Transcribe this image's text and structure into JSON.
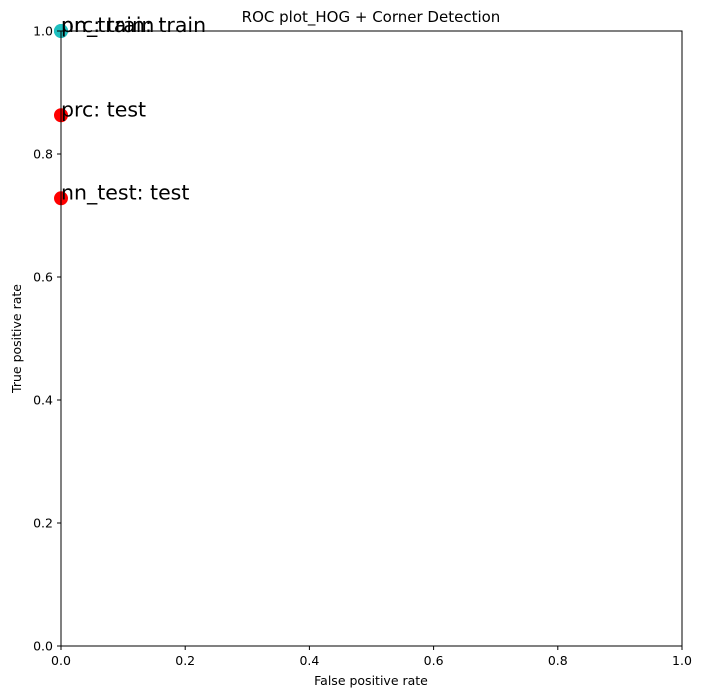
{
  "chart_data": {
    "type": "scatter",
    "title": "ROC plot_HOG + Corner Detection",
    "xlabel": "False positive rate",
    "ylabel": "True positive rate",
    "xlim": [
      0,
      1
    ],
    "ylim": [
      0,
      1
    ],
    "xticks": [
      "0.0",
      "0.2",
      "0.4",
      "0.6",
      "0.8",
      "1.0"
    ],
    "yticks": [
      "0.0",
      "0.2",
      "0.4",
      "0.6",
      "0.8",
      "1.0"
    ],
    "grid": false,
    "points": [
      {
        "label": "prc: train",
        "x": 0.0,
        "y": 1.0,
        "color": "#1fbfbf"
      },
      {
        "label": "nn_train: train",
        "x": 0.0,
        "y": 1.0,
        "color": "#1fbfbf"
      },
      {
        "label": "prc: test",
        "x": 0.0,
        "y": 0.863,
        "color": "#ff0000"
      },
      {
        "label": "nn_test: test",
        "x": 0.0,
        "y": 0.728,
        "color": "#ff0000"
      }
    ]
  }
}
